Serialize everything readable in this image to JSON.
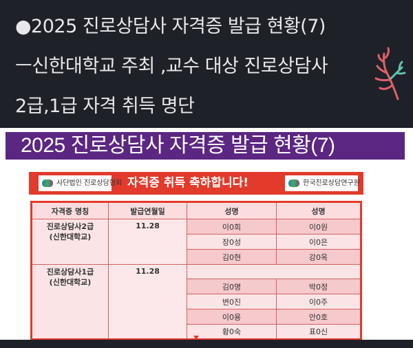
{
  "post": {
    "lines": [
      "●2025 진로상담사  자격증 발급 현황(7)",
      "ㅡ신한대학교 주최 ,교수 대상 진로상담사",
      "2급,1급 자격 취득 명단"
    ]
  },
  "image": {
    "banner_title": "2025 진로상담사 자격증 발급 현황(7)",
    "logo_left": "사단법인 진로상담협회",
    "congrats": "자격증 취득 축하합니다!",
    "logo_right": "한국진로상담연구원",
    "headers": [
      "자격증 명칭",
      "발급연월일",
      "성명",
      "성명"
    ],
    "groups": [
      {
        "cert": "진로상담사2급",
        "org": "(신한대학교)",
        "date": "11.28",
        "names": [
          [
            "이0희",
            "이0원"
          ],
          [
            "장0성",
            "이0은"
          ],
          [
            "김0현",
            "강0옥"
          ]
        ]
      },
      {
        "cert": "진로상담사1급",
        "org": "(신한대학교)",
        "date": "11.28",
        "names": [
          [
            "",
            ""
          ],
          [
            "김0명",
            "박0정"
          ],
          [
            "변0진",
            "이0주"
          ],
          [
            "이0용",
            "안0호"
          ],
          [
            "황0숙",
            "표0신"
          ]
        ]
      }
    ]
  },
  "colors": {
    "banner": "#5c2683",
    "accent": "#e23a2b",
    "background": "#1f2128"
  }
}
